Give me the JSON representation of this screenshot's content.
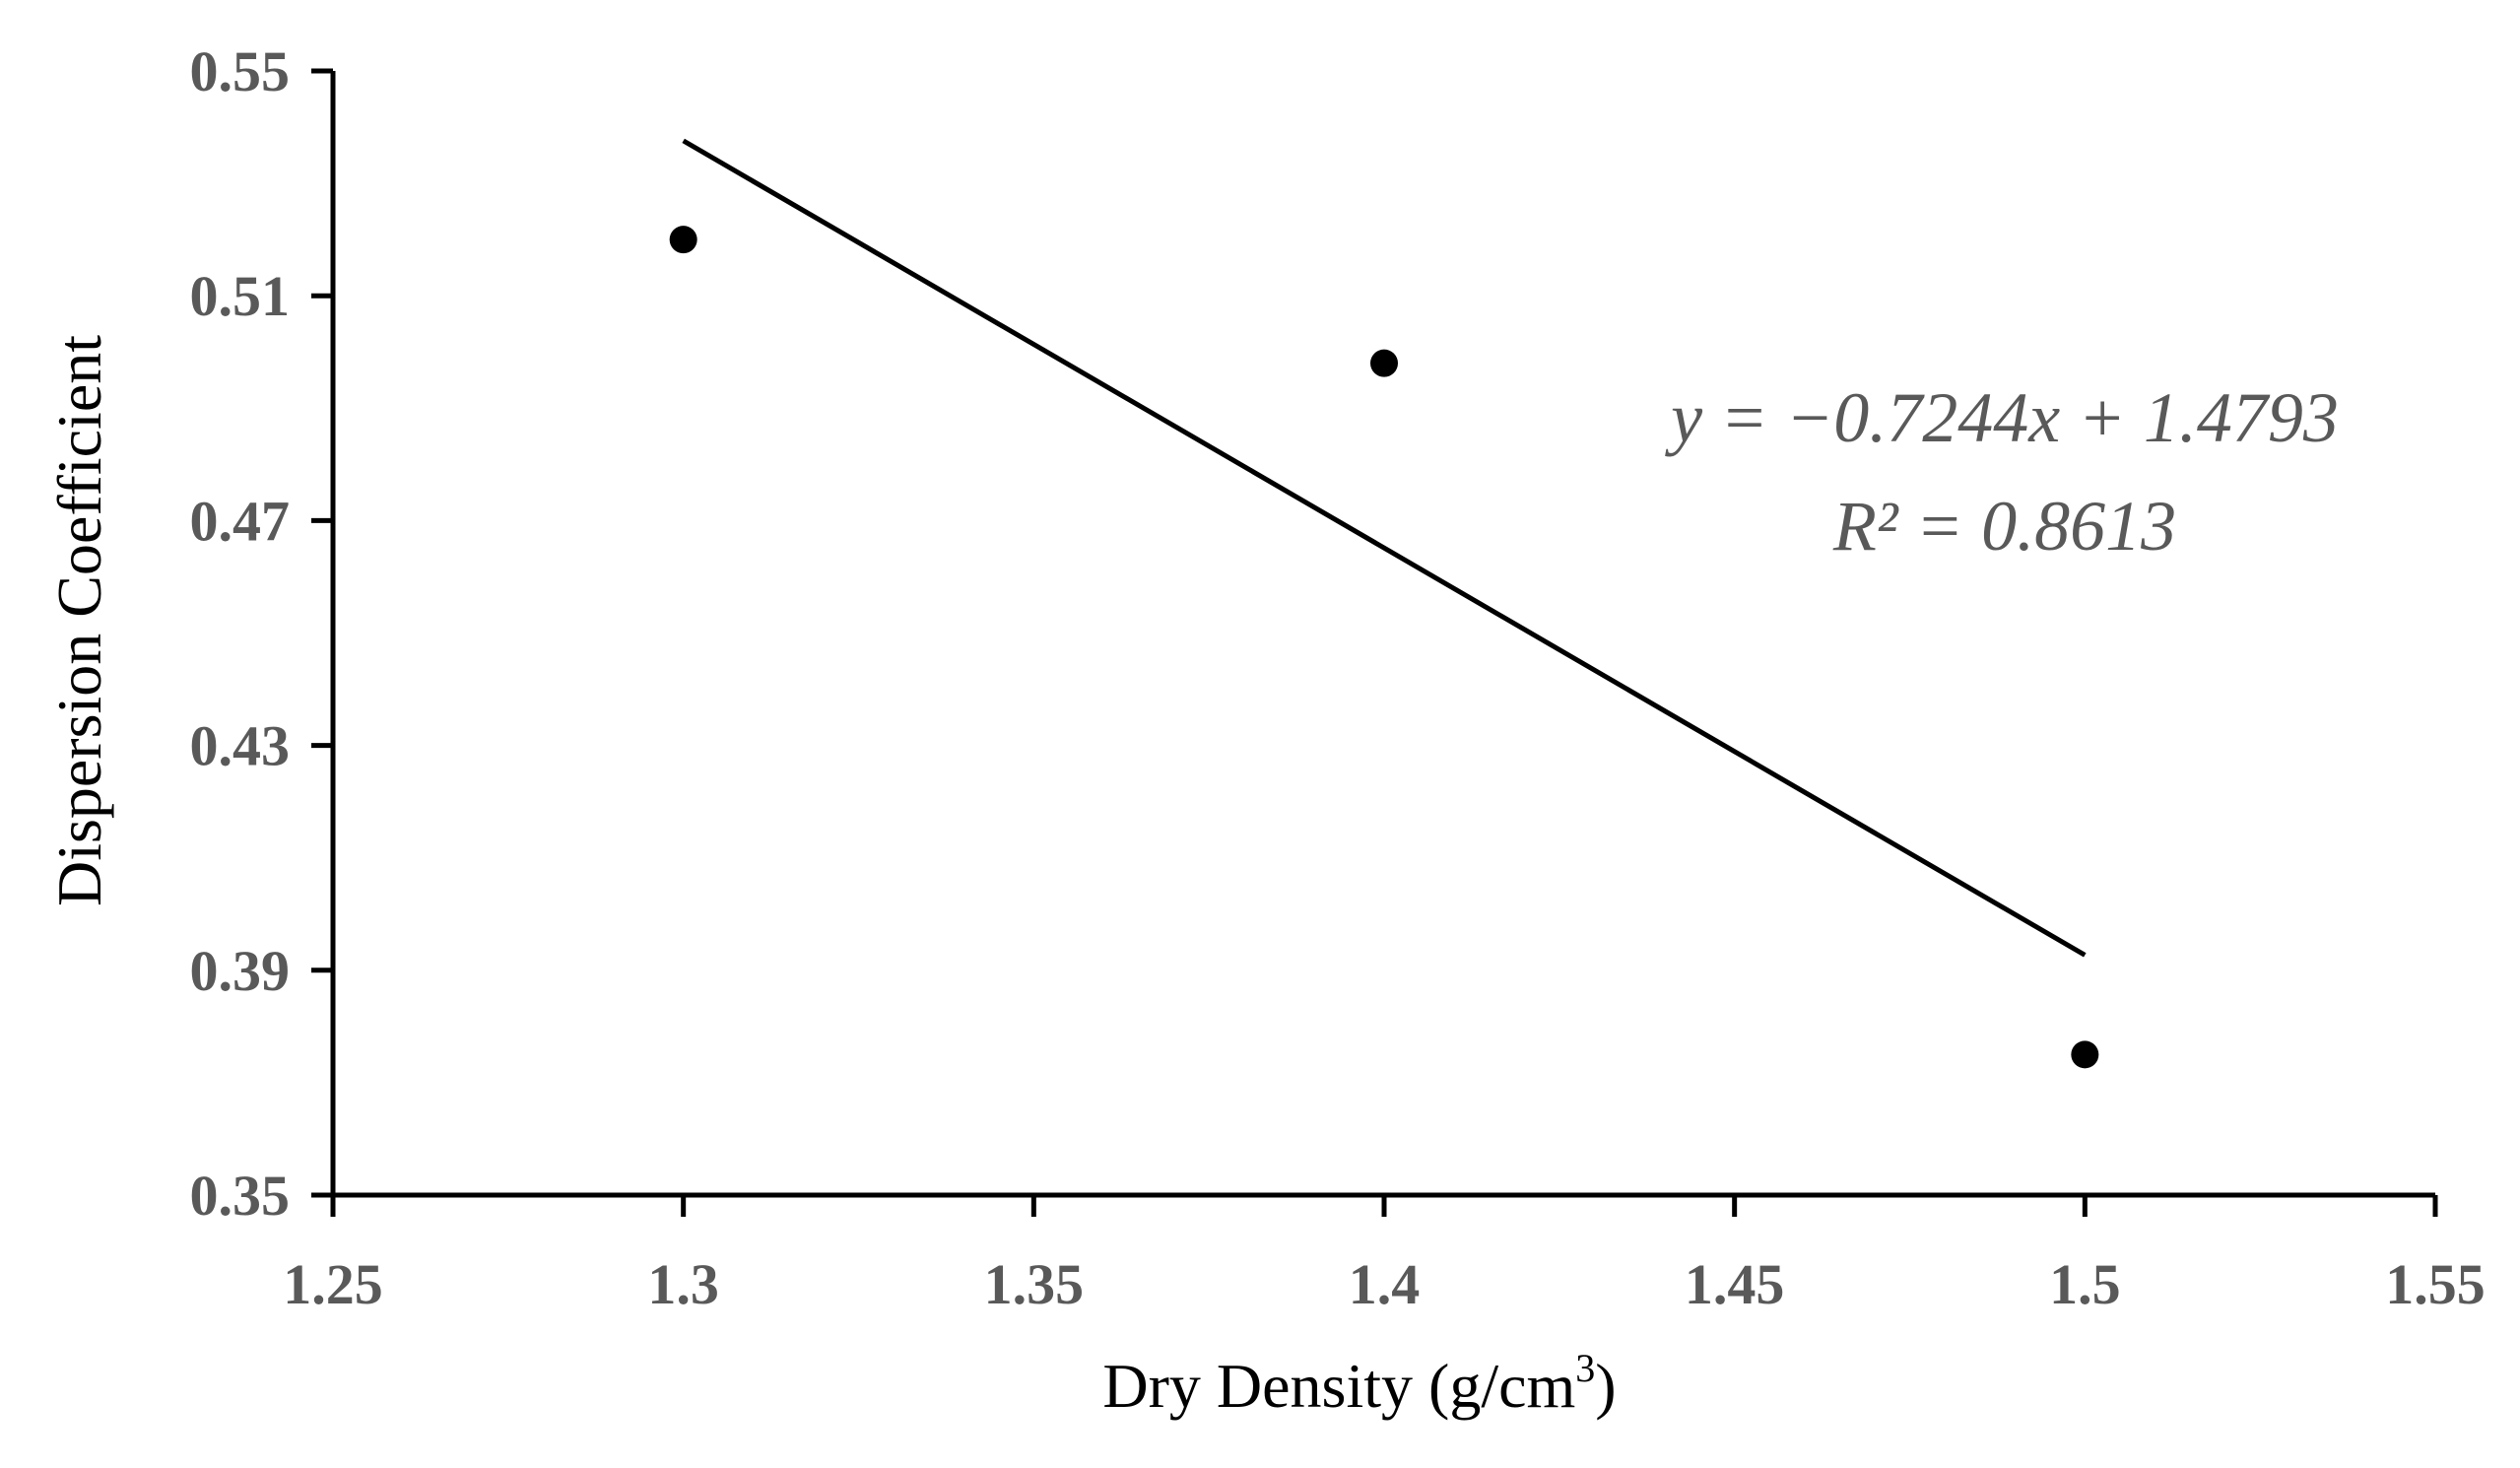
{
  "chart_data": {
    "type": "scatter",
    "x": [
      1.3,
      1.4,
      1.5
    ],
    "y": [
      0.52,
      0.498,
      0.375
    ],
    "xlim": [
      1.25,
      1.55
    ],
    "ylim": [
      0.35,
      0.55
    ],
    "xticks": [
      "1.25",
      "1.3",
      "1.35",
      "1.4",
      "1.45",
      "1.5",
      "1.55"
    ],
    "yticks": [
      "0.35",
      "0.39",
      "0.43",
      "0.47",
      "0.51",
      "0.55"
    ],
    "xlabel_main": "Dry Density (g/cm",
    "xlabel_sup": "3",
    "xlabel_end": ")",
    "ylabel": "Dispersion Coefficient",
    "grid": false,
    "trendline": {
      "slope": -0.7244,
      "intercept": 1.4793,
      "x_range": [
        1.3,
        1.5
      ],
      "equation_text": "y = −0.7244x + 1.4793",
      "r2_text": "R² = 0.8613"
    },
    "colors": {
      "points": "#000000",
      "line": "#000000",
      "axis": "#000000",
      "tick_text": "#595959",
      "equation_text": "#595959"
    }
  }
}
